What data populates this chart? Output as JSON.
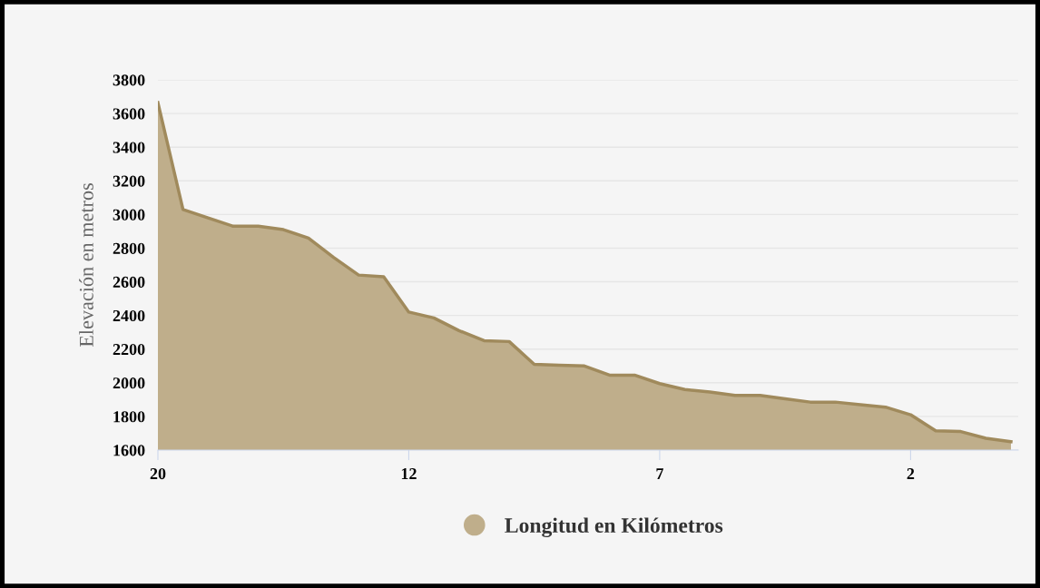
{
  "chart_data": {
    "type": "area",
    "ylabel": "Elevación en metros",
    "categories": [
      "20",
      null,
      null,
      null,
      null,
      null,
      null,
      null,
      null,
      null,
      "12",
      null,
      null,
      null,
      null,
      null,
      null,
      null,
      null,
      null,
      "7",
      null,
      null,
      null,
      null,
      null,
      null,
      null,
      null,
      null,
      "2",
      null,
      null,
      null,
      null
    ],
    "series": [
      {
        "name": "Longitud en Kilómetros",
        "color": "#bfae8b",
        "values": [
          3665,
          3030,
          2980,
          2930,
          2930,
          2910,
          2860,
          2745,
          2640,
          2630,
          2420,
          2385,
          2310,
          2250,
          2245,
          2110,
          2104,
          2100,
          2045,
          2045,
          1995,
          1960,
          1945,
          1925,
          1925,
          1905,
          1885,
          1885,
          1870,
          1855,
          1810,
          1715,
          1710,
          1670,
          1650
        ]
      }
    ],
    "ylim": [
      1600,
      3800
    ],
    "yticks": [
      1600,
      1800,
      2000,
      2200,
      2400,
      2600,
      2800,
      3000,
      3200,
      3400,
      3600,
      3800
    ],
    "grid": "y",
    "legend": "bottom"
  }
}
